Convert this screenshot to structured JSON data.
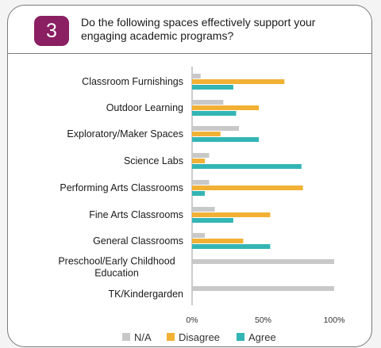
{
  "header": {
    "number": "3",
    "question": "Do the following spaces effectively support your engaging academic programs?"
  },
  "chart_data": {
    "type": "bar",
    "orientation": "horizontal",
    "categories": [
      "Classroom Furnishings",
      "Outdoor Learning",
      "Exploratory/Maker Spaces",
      "Science Labs",
      "Performing Arts Classrooms",
      "Fine Arts Classrooms",
      "General Classrooms",
      [
        "Preschool/Early Childhood",
        "Education"
      ],
      "TK/Kindergarden"
    ],
    "series": [
      {
        "name": "N/A",
        "color": "#c8c8c8",
        "values": [
          6,
          22,
          33,
          12,
          12,
          16,
          9,
          100,
          100
        ]
      },
      {
        "name": "Disagree",
        "color": "#f2b134",
        "values": [
          65,
          47,
          20,
          9,
          78,
          55,
          36,
          0,
          0
        ]
      },
      {
        "name": "Agree",
        "color": "#34b5b5",
        "values": [
          29,
          31,
          47,
          77,
          9,
          29,
          55,
          0,
          0
        ]
      }
    ],
    "xlim": [
      0,
      100
    ],
    "ticks": [
      "0%",
      "50%",
      "100%"
    ],
    "legend": "bottom",
    "grid": false
  }
}
